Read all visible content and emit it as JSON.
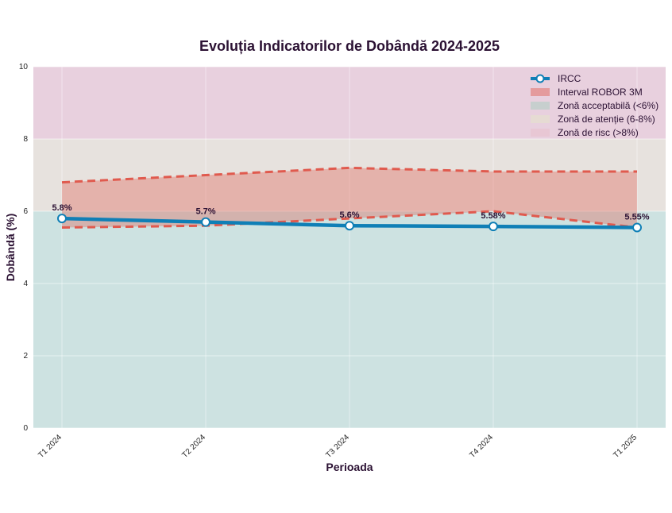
{
  "chart_data": {
    "type": "line",
    "title": "Evoluția Indicatorilor de Dobândă 2024-2025",
    "xlabel": "Perioada",
    "ylabel": "Dobândă (%)",
    "ylim": [
      0,
      10
    ],
    "yticks": [
      "0",
      "2",
      "4",
      "6",
      "8",
      "10"
    ],
    "categories": [
      "T1 2024",
      "T2 2024",
      "T3 2024",
      "T4 2024",
      "T1 2025"
    ],
    "series": [
      {
        "name": "IRCC",
        "values": [
          5.8,
          5.7,
          5.6,
          5.58,
          5.55
        ],
        "data_labels": [
          "5.8%",
          "5.7%",
          "5.6%",
          "5.58%",
          "5.55%"
        ],
        "color": "#0f7fb6"
      }
    ],
    "band": {
      "name": "Interval ROBOR 3M",
      "lower": [
        5.55,
        5.6,
        5.8,
        6.0,
        5.55
      ],
      "upper": [
        6.8,
        7.0,
        7.2,
        7.1,
        7.1
      ],
      "color": "#e05a4e"
    },
    "zones": [
      {
        "name": "Zonă acceptabilă (<6%)",
        "from": 0,
        "to": 6,
        "color": "#cde2e1"
      },
      {
        "name": "Zonă de atenție (6-8%)",
        "from": 6,
        "to": 8,
        "color": "#e7e2de"
      },
      {
        "name": "Zonă de risc (>8%)",
        "from": 8,
        "to": 10,
        "color": "#e8d0de"
      }
    ],
    "grid": true,
    "legend_position": "top-right"
  }
}
